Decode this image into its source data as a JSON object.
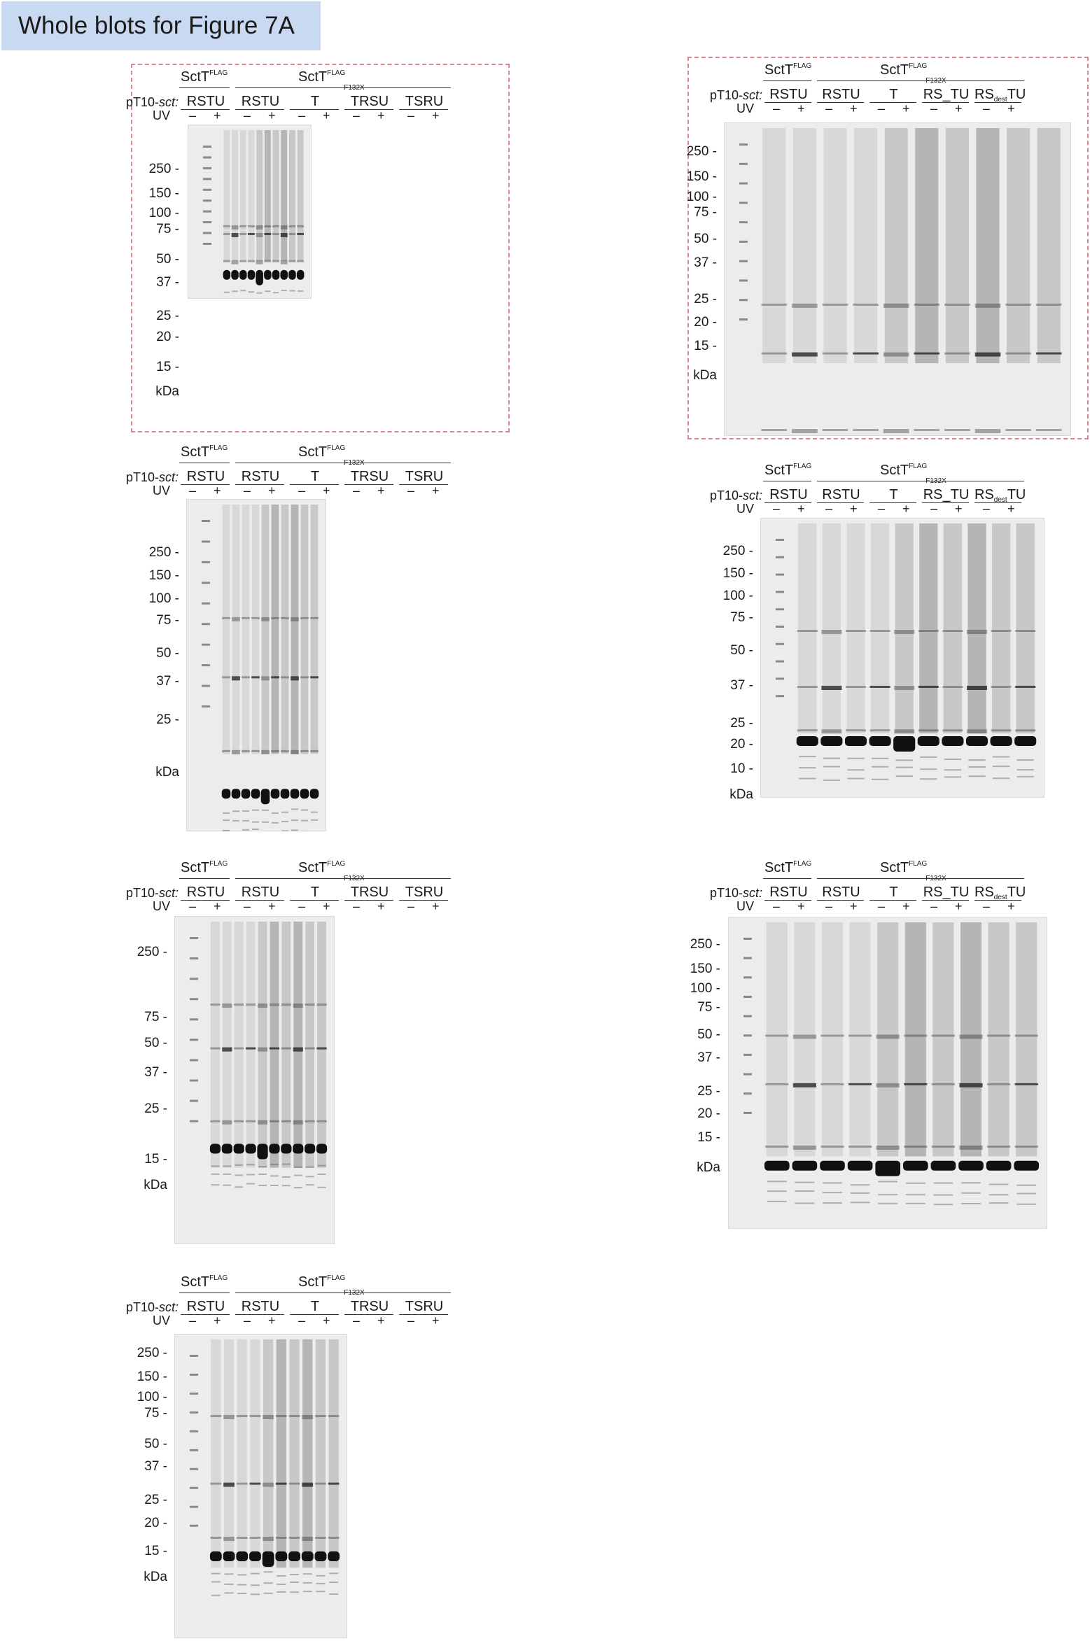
{
  "title": "Whole blots for Figure 7A",
  "labels": {
    "wt": "SctT",
    "flag": "FLAG",
    "mut": "SctT",
    "mut_sub": "F132X",
    "plasmid": "pT10-",
    "plasmid_italic": "sct:",
    "uv": "UV",
    "minus": "–",
    "plus": "+",
    "kda": "kDa",
    "rsdest_a": "RS",
    "rsdest_sub": "dest",
    "rsdest_b": "TU"
  },
  "lanes_a": [
    "RSTU",
    "RSTU",
    "T",
    "TRSU",
    "TSRU"
  ],
  "lanes_b": [
    "RSTU",
    "RSTU",
    "T",
    "RS_TU"
  ],
  "markers": {
    "p1": [
      "250 -",
      "150 -",
      "100 -",
      "75 -",
      "50 -",
      "37 -",
      "25 -",
      "20 -",
      "15 -"
    ],
    "p2": [
      "250 -",
      "150 -",
      "100 -",
      "75 -",
      "50 -",
      "37 -",
      "25 -",
      "20 -",
      "15 -"
    ],
    "p3": [
      "250 -",
      "150 -",
      "100 -",
      "75 -",
      "50 -",
      "37 -",
      "25 -"
    ],
    "p4": [
      "250 -",
      "150 -",
      "100 -",
      "75 -",
      "50 -",
      "37 -",
      "25 -",
      "20 -",
      "10 -"
    ],
    "p5": [
      "250 -",
      "75 -",
      "50 -",
      "37 -",
      "25 -",
      "15 -"
    ],
    "p6": [
      "250 -",
      "150 -",
      "100 -",
      "75 -",
      "50 -",
      "37 -",
      "25 -",
      "20 -",
      "15 -"
    ],
    "p7": [
      "250 -",
      "150 -",
      "100 -",
      "75 -",
      "50 -",
      "37 -",
      "25 -",
      "20 -",
      "15 -"
    ]
  }
}
